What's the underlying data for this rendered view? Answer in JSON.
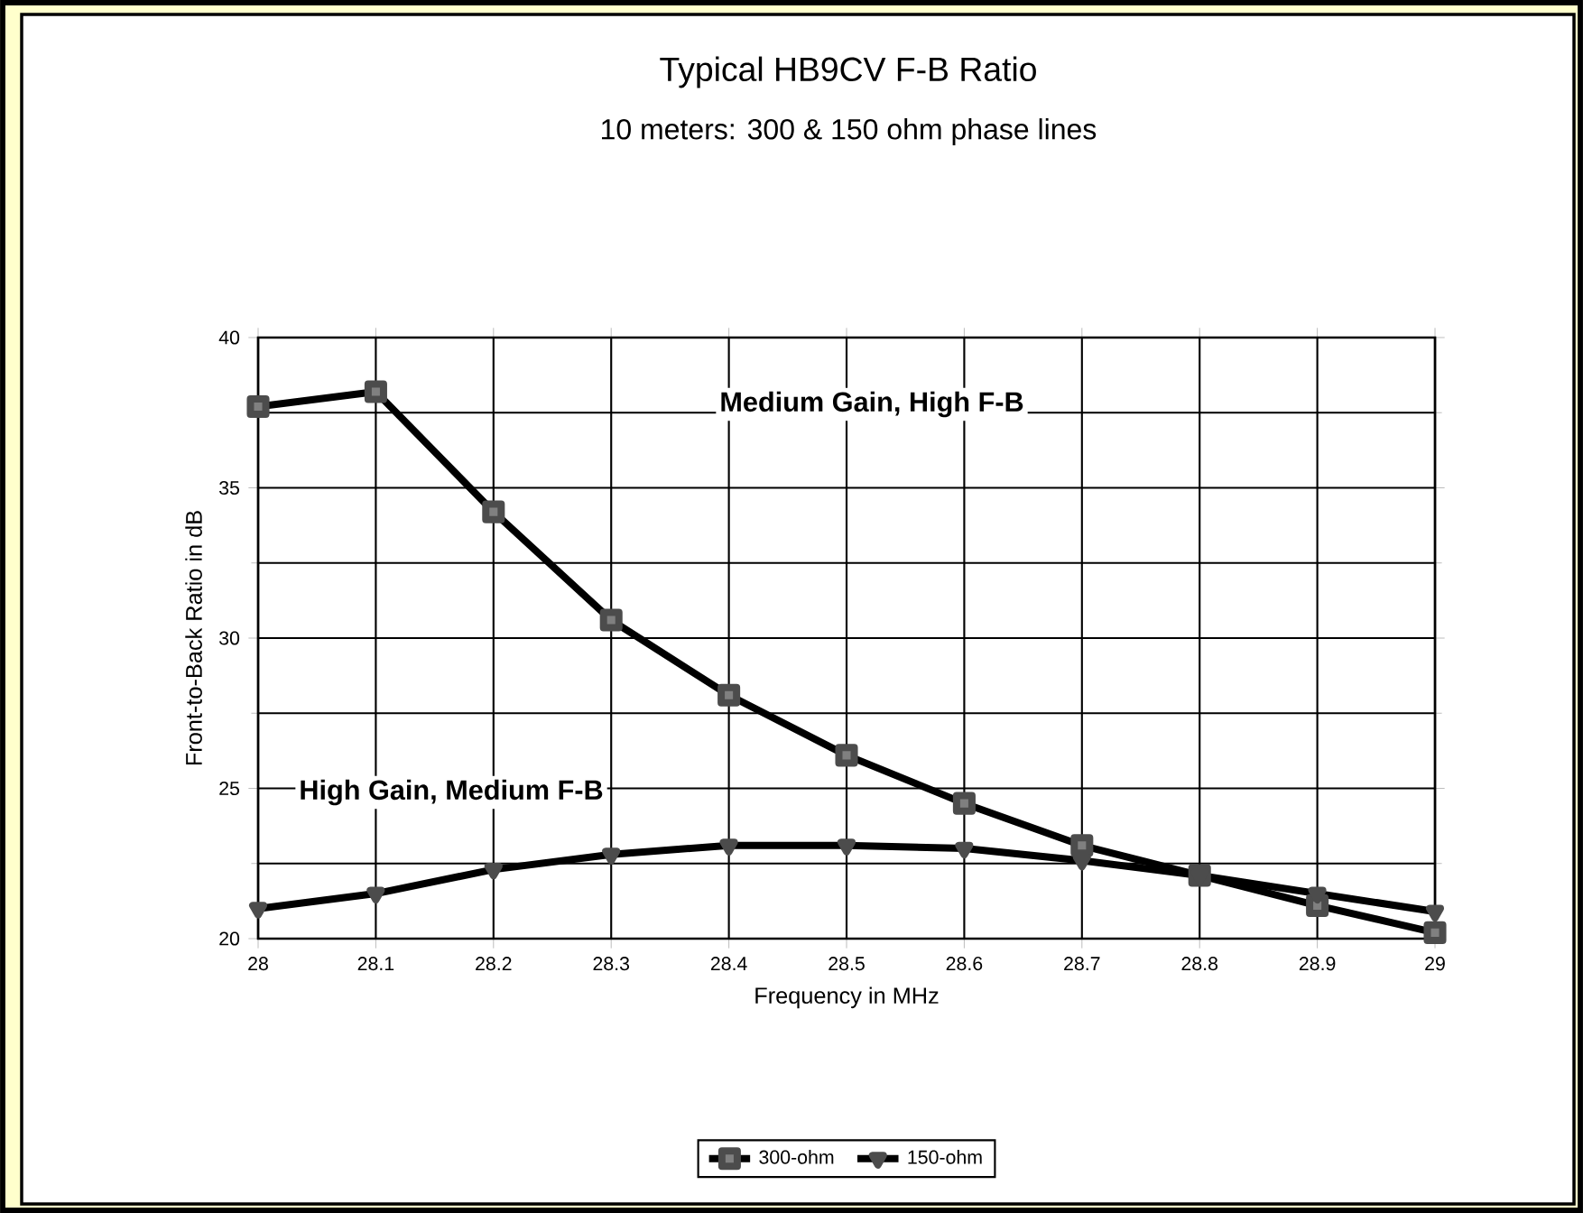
{
  "chart_data": {
    "type": "line",
    "title": "Typical HB9CV F-B Ratio",
    "subtitle": "10 meters:  300 & 150 ohm phase lines",
    "xlabel": "Frequency in MHz",
    "ylabel": "Front-to-Back Ratio in dB",
    "x": [
      28,
      28.1,
      28.2,
      28.3,
      28.4,
      28.5,
      28.6,
      28.7,
      28.8,
      28.9,
      29
    ],
    "series": [
      {
        "name": "300-ohm",
        "color": "#000000",
        "marker": "square",
        "values": [
          37.7,
          38.2,
          34.2,
          30.6,
          28.1,
          26.1,
          24.5,
          23.1,
          22.1,
          21.1,
          20.2
        ]
      },
      {
        "name": "150-ohm",
        "color": "#000000",
        "marker": "triangle",
        "values": [
          21.0,
          21.5,
          22.3,
          22.8,
          23.1,
          23.1,
          23.0,
          22.6,
          22.1,
          21.5,
          20.9
        ]
      }
    ],
    "xlim": [
      28,
      29
    ],
    "ylim": [
      20,
      40
    ],
    "xticks": [
      28,
      28.1,
      28.2,
      28.3,
      28.4,
      28.5,
      28.6,
      28.7,
      28.8,
      28.9,
      29
    ],
    "yticks": [
      20,
      25,
      30,
      35,
      40
    ],
    "grid": true,
    "legend": "bottom",
    "line_style": "solid",
    "annotations": [
      "Medium Gain, High F-B",
      "High Gain, Medium F-B"
    ]
  }
}
